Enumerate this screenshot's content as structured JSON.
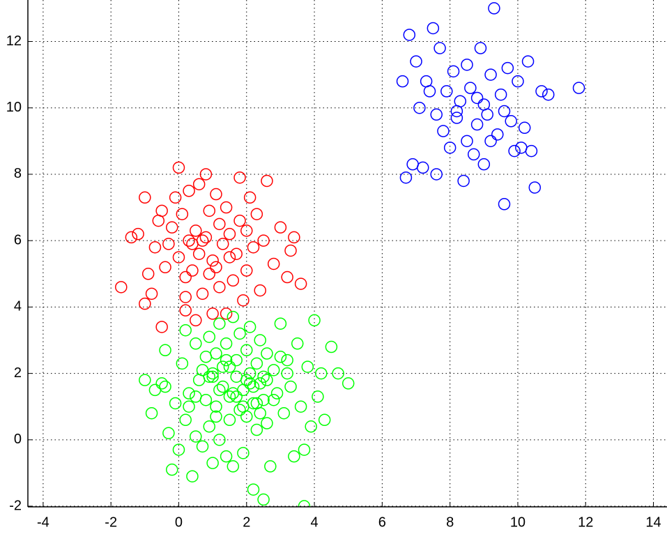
{
  "chart_data": {
    "type": "scatter",
    "xlim": [
      -4.45,
      14.4
    ],
    "ylim": [
      -2.02,
      13.25
    ],
    "xticks": [
      -4,
      -2,
      0,
      2,
      4,
      6,
      8,
      10,
      12,
      14
    ],
    "yticks": [
      -2,
      0,
      2,
      4,
      6,
      8,
      10,
      12
    ],
    "grid": true,
    "series": [
      {
        "color": "#ff0000",
        "x": [
          -1.7,
          -1.4,
          -1.2,
          -1.0,
          -1.0,
          -0.9,
          -0.8,
          -0.7,
          -0.6,
          -0.5,
          -0.4,
          -0.3,
          -0.2,
          -0.1,
          0.0,
          0.0,
          0.1,
          0.2,
          0.2,
          0.3,
          0.3,
          0.4,
          0.5,
          0.5,
          0.6,
          0.6,
          0.7,
          0.8,
          0.8,
          0.9,
          0.9,
          1.0,
          1.0,
          1.1,
          1.2,
          1.2,
          1.3,
          1.4,
          1.4,
          1.5,
          1.6,
          1.7,
          1.8,
          1.8,
          1.9,
          2.0,
          2.1,
          2.2,
          2.3,
          2.4,
          2.5,
          2.6,
          2.8,
          3.0,
          3.2,
          3.3,
          3.4,
          3.6,
          0.4,
          1.5,
          2.0,
          -0.5,
          0.7,
          1.1,
          0.2
        ],
        "values": [
          4.6,
          6.1,
          6.2,
          7.3,
          4.1,
          5.0,
          4.4,
          5.8,
          6.6,
          3.4,
          5.2,
          5.9,
          6.4,
          7.3,
          8.2,
          5.5,
          6.8,
          4.9,
          3.9,
          7.5,
          6.0,
          5.1,
          3.6,
          6.3,
          7.7,
          5.6,
          4.4,
          8.0,
          6.1,
          5.0,
          6.9,
          3.8,
          5.4,
          7.4,
          6.5,
          4.6,
          5.9,
          7.0,
          3.8,
          6.2,
          4.8,
          5.6,
          7.9,
          6.6,
          4.2,
          5.1,
          7.3,
          5.8,
          6.8,
          4.5,
          6.0,
          7.8,
          5.3,
          6.4,
          4.9,
          5.7,
          6.1,
          4.7,
          5.9,
          5.5,
          6.3,
          6.9,
          6.0,
          5.2,
          4.3
        ]
      },
      {
        "color": "#00ff00",
        "x": [
          -1.0,
          -0.8,
          -0.7,
          -0.5,
          -0.4,
          -0.3,
          -0.2,
          -0.1,
          0.0,
          0.1,
          0.2,
          0.2,
          0.3,
          0.4,
          0.5,
          0.5,
          0.6,
          0.7,
          0.8,
          0.8,
          0.9,
          0.9,
          1.0,
          1.0,
          1.1,
          1.1,
          1.2,
          1.2,
          1.3,
          1.3,
          1.4,
          1.4,
          1.5,
          1.5,
          1.6,
          1.6,
          1.7,
          1.7,
          1.8,
          1.8,
          1.9,
          1.9,
          2.0,
          2.0,
          2.1,
          2.1,
          2.2,
          2.2,
          2.3,
          2.3,
          2.4,
          2.4,
          2.5,
          2.5,
          2.6,
          2.6,
          2.7,
          2.8,
          2.9,
          3.0,
          3.1,
          3.2,
          3.3,
          3.4,
          3.5,
          3.6,
          3.7,
          3.8,
          3.9,
          4.0,
          4.1,
          4.2,
          4.3,
          4.5,
          4.7,
          5.0,
          3.7,
          2.5,
          2.3,
          1.2,
          0.5,
          -0.4,
          1.0,
          1.6,
          2.0,
          2.8,
          3.2,
          0.3,
          1.4,
          2.6,
          1.9,
          0.7,
          2.2,
          1.1,
          3.0,
          1.7,
          2.4,
          0.9,
          1.5,
          2.1
        ],
        "values": [
          1.8,
          0.8,
          1.5,
          1.7,
          2.7,
          0.2,
          -0.9,
          1.1,
          -0.3,
          2.3,
          0.6,
          3.3,
          1.4,
          -1.1,
          2.9,
          0.1,
          1.8,
          -0.2,
          2.5,
          1.2,
          3.1,
          0.4,
          1.9,
          -0.7,
          2.6,
          1.0,
          3.5,
          0.0,
          1.6,
          2.2,
          -0.5,
          2.9,
          1.3,
          0.6,
          3.7,
          -0.8,
          1.9,
          2.4,
          0.9,
          3.2,
          1.5,
          -0.4,
          2.7,
          0.7,
          2.0,
          3.4,
          1.1,
          -1.5,
          2.3,
          0.3,
          1.7,
          3.0,
          -1.8,
          1.2,
          2.6,
          0.5,
          -0.8,
          2.1,
          1.4,
          3.5,
          0.8,
          2.4,
          1.6,
          -0.5,
          2.9,
          1.0,
          -2.0,
          2.2,
          0.4,
          3.6,
          1.3,
          2.0,
          0.6,
          2.8,
          2.0,
          1.7,
          -0.3,
          1.9,
          1.1,
          1.5,
          1.3,
          1.6,
          2.0,
          1.4,
          1.8,
          1.2,
          2.0,
          1.0,
          2.4,
          1.8,
          1.0,
          2.1,
          1.6,
          0.7,
          2.5,
          1.3,
          0.8,
          1.9,
          2.2,
          1.7
        ]
      },
      {
        "color": "#0000ff",
        "x": [
          6.6,
          6.7,
          6.8,
          6.9,
          7.0,
          7.1,
          7.2,
          7.3,
          7.5,
          7.6,
          7.6,
          7.7,
          7.8,
          7.9,
          8.0,
          8.1,
          8.2,
          8.3,
          8.4,
          8.5,
          8.5,
          8.6,
          8.7,
          8.8,
          8.9,
          9.0,
          9.0,
          9.1,
          9.2,
          9.3,
          9.4,
          9.5,
          9.6,
          9.7,
          9.8,
          9.9,
          10.0,
          10.1,
          10.2,
          10.3,
          10.4,
          10.5,
          10.7,
          10.9,
          11.8,
          8.2,
          8.8,
          9.6,
          7.4,
          9.2
        ],
        "values": [
          10.8,
          7.9,
          12.2,
          8.3,
          11.4,
          10.0,
          8.2,
          10.8,
          12.4,
          9.8,
          8.0,
          11.8,
          9.3,
          10.5,
          8.8,
          11.1,
          9.7,
          10.2,
          7.8,
          9.0,
          11.3,
          10.6,
          8.6,
          9.5,
          11.8,
          10.1,
          8.3,
          9.8,
          11.0,
          13.0,
          9.2,
          10.4,
          7.1,
          11.2,
          9.6,
          8.7,
          10.8,
          8.8,
          9.4,
          11.4,
          8.7,
          7.6,
          10.5,
          10.4,
          10.6,
          9.9,
          10.3,
          9.9,
          10.5,
          9.0
        ]
      }
    ]
  }
}
